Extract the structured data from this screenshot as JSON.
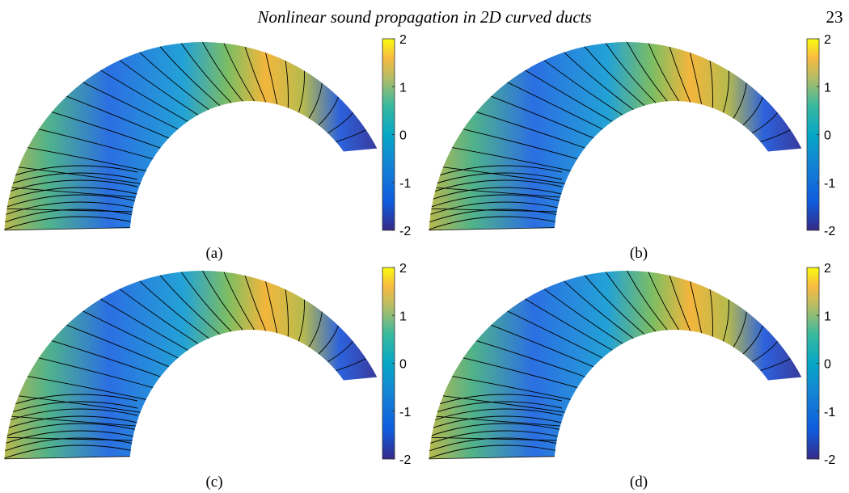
{
  "header": {
    "title": "Nonlinear sound propagation in 2D curved ducts",
    "page": "23"
  },
  "panels": [
    {
      "label": "(a)",
      "colorbar": {
        "lim": [
          -2,
          2
        ],
        "ticks": [
          2,
          1,
          0,
          -1,
          -2
        ]
      }
    },
    {
      "label": "(b)",
      "colorbar": {
        "lim": [
          -2,
          2
        ],
        "ticks": [
          2,
          1,
          0,
          -1,
          -2
        ]
      }
    },
    {
      "label": "(c)",
      "colorbar": {
        "lim": [
          -2,
          2
        ],
        "ticks": [
          2,
          1,
          0,
          -1,
          -2
        ]
      }
    },
    {
      "label": "(d)",
      "colorbar": {
        "lim": [
          -2,
          2
        ],
        "ticks": [
          2,
          1,
          0,
          -1,
          -2
        ]
      }
    }
  ]
}
